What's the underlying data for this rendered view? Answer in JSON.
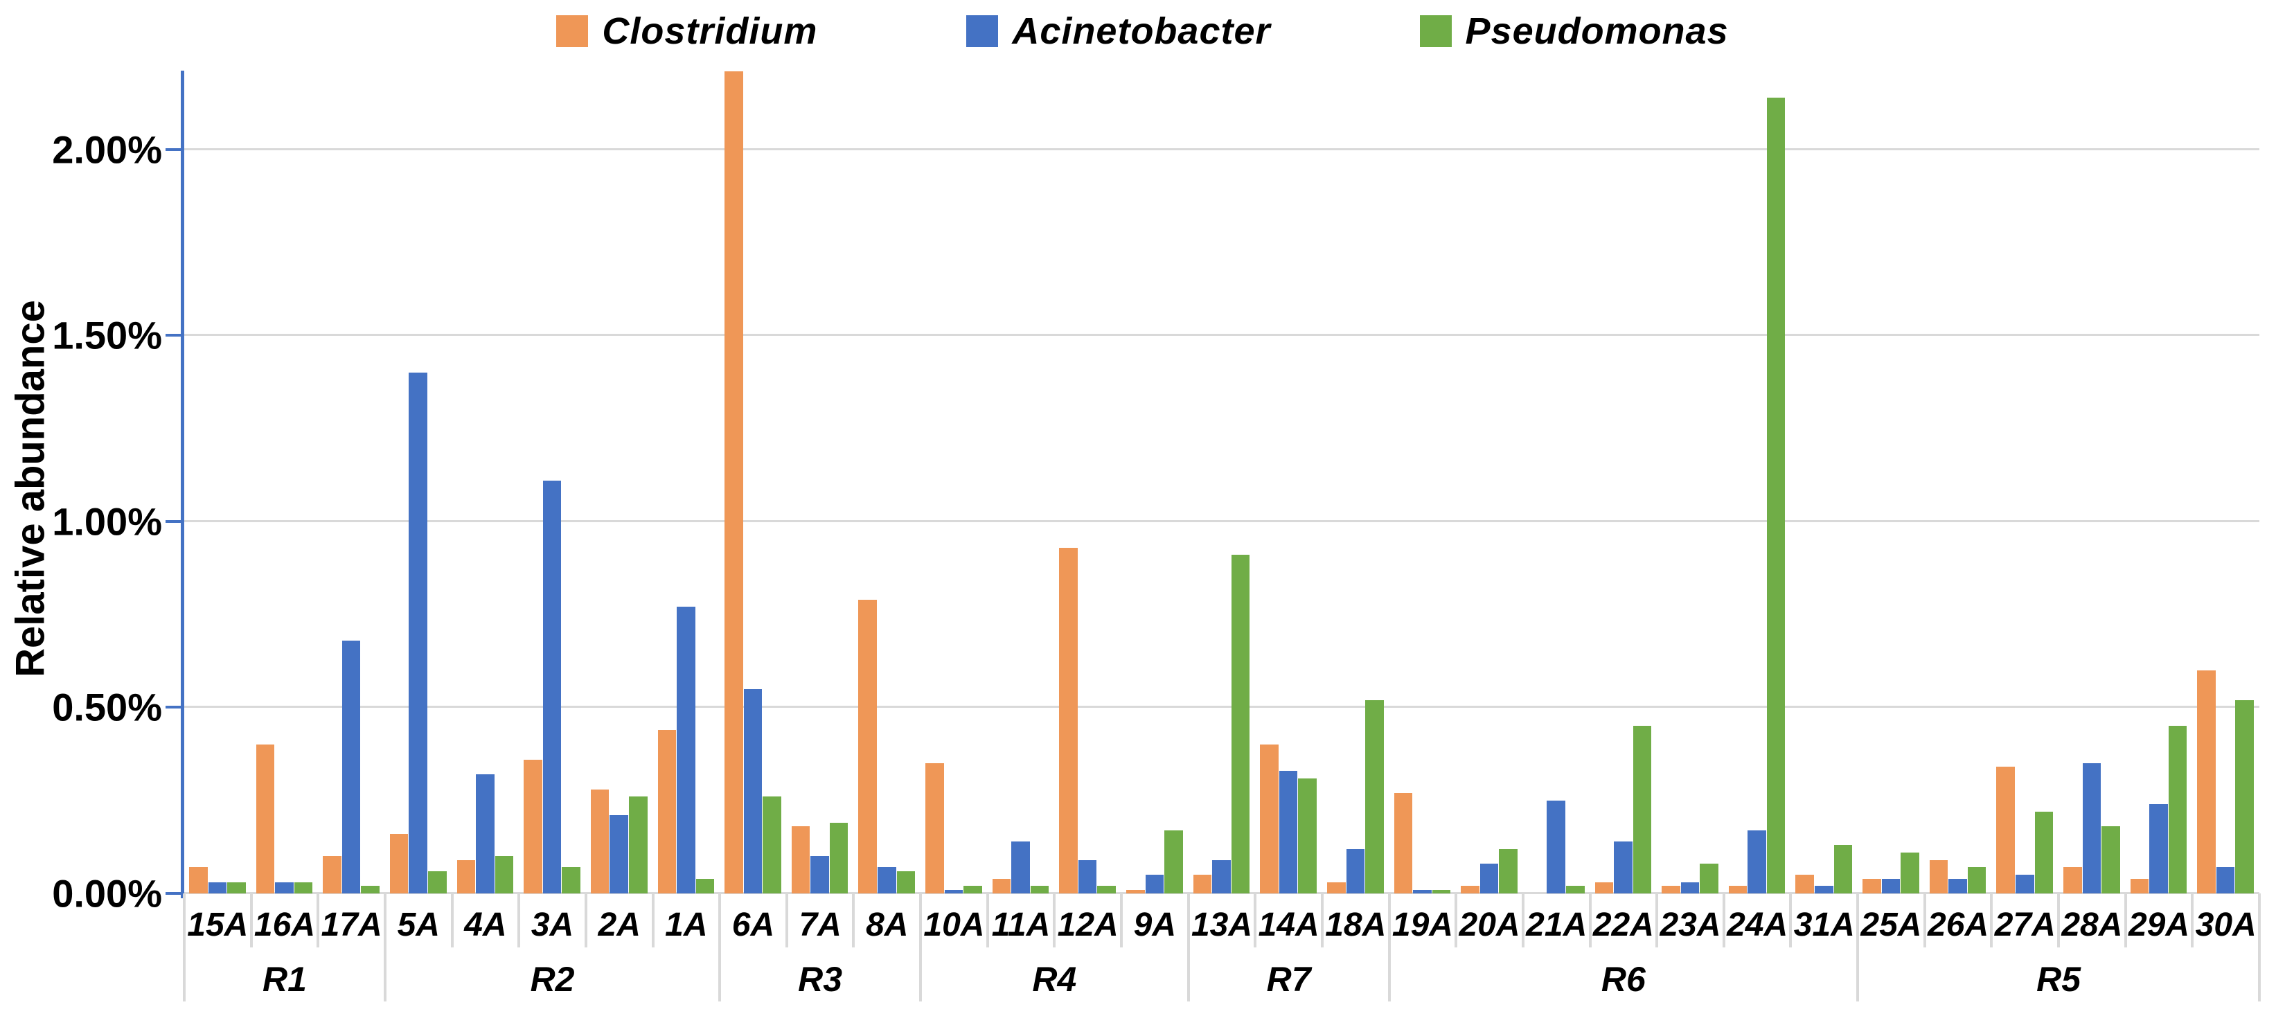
{
  "chart_data": {
    "type": "bar",
    "title": "",
    "ylabel": "Relative abundance",
    "ylim": [
      0,
      2.212
    ],
    "yticks": [
      0,
      0.5,
      1.0,
      1.5,
      2.0
    ],
    "ytick_labels": [
      "0.00%",
      "0.50%",
      "1.00%",
      "1.50%",
      "2.00%"
    ],
    "grid": true,
    "legend_position": "top",
    "gridline_color": "#d9d9d9",
    "axis_color": "#4472c4",
    "categories": [
      "15A",
      "16A",
      "17A",
      "5A",
      "4A",
      "3A",
      "2A",
      "1A",
      "6A",
      "7A",
      "8A",
      "10A",
      "11A",
      "12A",
      "9A",
      "13A",
      "14A",
      "18A",
      "19A",
      "20A",
      "21A",
      "22A",
      "23A",
      "24A",
      "31A",
      "25A",
      "26A",
      "27A",
      "28A",
      "29A",
      "30A"
    ],
    "groups": [
      {
        "label": "R1",
        "count": 3
      },
      {
        "label": "R2",
        "count": 5
      },
      {
        "label": "R3",
        "count": 3
      },
      {
        "label": "R4",
        "count": 4
      },
      {
        "label": "R7",
        "count": 3
      },
      {
        "label": "R6",
        "count": 7
      },
      {
        "label": "R5",
        "count": 6
      }
    ],
    "series": [
      {
        "name": "Clostridium",
        "color": "#ef9757",
        "values": [
          0.07,
          0.4,
          0.1,
          0.16,
          0.09,
          0.36,
          0.28,
          0.44,
          2.21,
          0.18,
          0.79,
          0.35,
          0.04,
          0.93,
          0.01,
          0.05,
          0.4,
          0.03,
          0.27,
          0.02,
          0.0,
          0.03,
          0.02,
          0.02,
          0.05,
          0.04,
          0.09,
          0.34,
          0.07,
          0.04,
          0.6
        ]
      },
      {
        "name": "Acinetobacter",
        "color": "#4472c4",
        "values": [
          0.03,
          0.03,
          0.68,
          1.4,
          0.32,
          1.11,
          0.21,
          0.77,
          0.55,
          0.1,
          0.07,
          0.01,
          0.14,
          0.09,
          0.05,
          0.09,
          0.33,
          0.12,
          0.01,
          0.08,
          0.25,
          0.14,
          0.03,
          0.17,
          0.02,
          0.04,
          0.04,
          0.05,
          0.35,
          0.24,
          0.07
        ]
      },
      {
        "name": "Pseudomonas",
        "color": "#70ad47",
        "values": [
          0.03,
          0.03,
          0.02,
          0.06,
          0.1,
          0.07,
          0.26,
          0.04,
          0.26,
          0.19,
          0.06,
          0.02,
          0.02,
          0.02,
          0.17,
          0.91,
          0.31,
          0.52,
          0.01,
          0.12,
          0.02,
          0.45,
          0.08,
          2.14,
          0.13,
          0.11,
          0.07,
          0.22,
          0.18,
          0.45,
          0.52
        ]
      }
    ]
  }
}
